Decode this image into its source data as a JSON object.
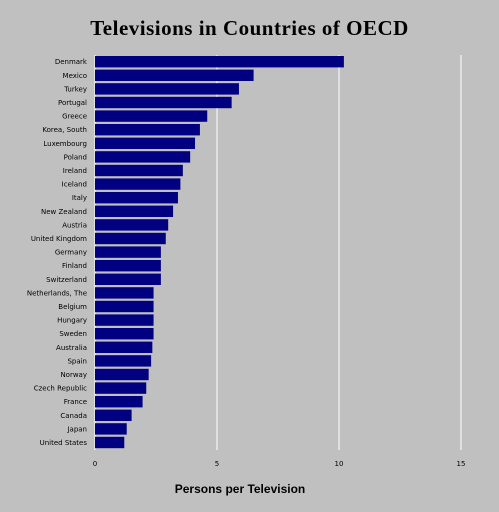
{
  "chart_data": {
    "type": "bar",
    "orientation": "horizontal",
    "title": "Televisions in Countries of OECD",
    "xlabel": "Persons per Television",
    "ylabel": "",
    "xlim": [
      0,
      15
    ],
    "xticks": [
      0,
      5,
      10,
      15
    ],
    "grid": true,
    "bar_color": "#000080",
    "background": "#c0c0c0",
    "categories": [
      "Denmark",
      "Mexico",
      "Turkey",
      "Portugal",
      "Greece",
      "Korea, South",
      "Luxembourg",
      "Poland",
      "Ireland",
      "Iceland",
      "Italy",
      "New Zealand",
      "Austria",
      "United Kingdom",
      "Germany",
      "Finland",
      "Switzerland",
      "Netherlands, The",
      "Belgium",
      "Hungary",
      "Sweden",
      "Australia",
      "Spain",
      "Norway",
      "Czech Republic",
      "France",
      "Canada",
      "Japan",
      "United States"
    ],
    "values": [
      10.2,
      6.5,
      5.9,
      5.6,
      4.6,
      4.3,
      4.1,
      3.9,
      3.6,
      3.5,
      3.4,
      3.2,
      3.0,
      2.9,
      2.7,
      2.7,
      2.7,
      2.4,
      2.4,
      2.4,
      2.4,
      2.35,
      2.3,
      2.2,
      2.1,
      1.95,
      1.5,
      1.3,
      1.2
    ]
  }
}
